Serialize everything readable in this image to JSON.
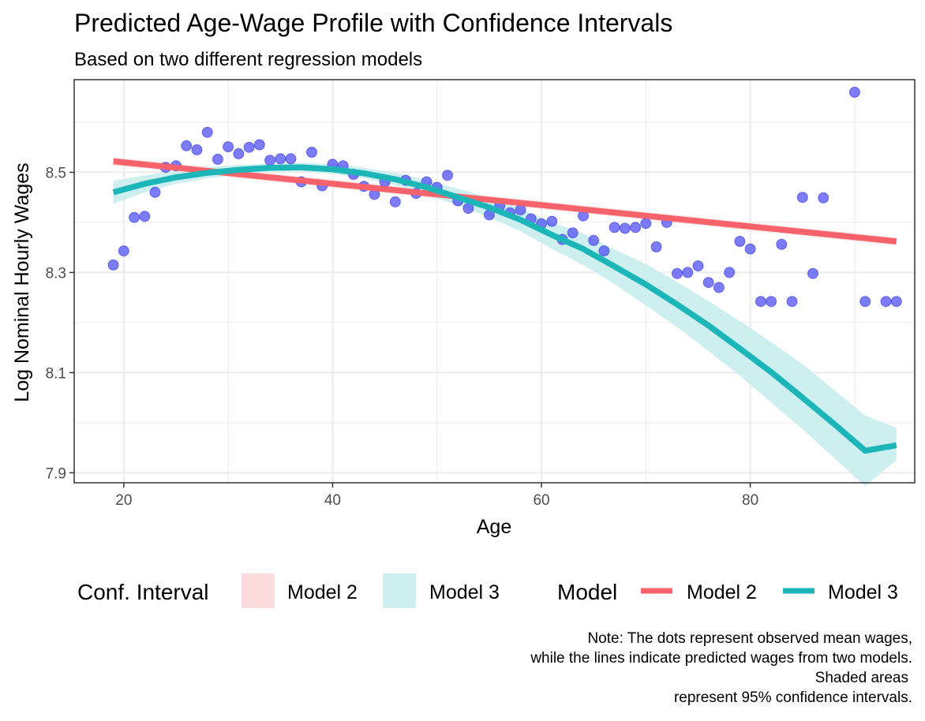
{
  "chart_data": {
    "type": "scatter",
    "title": "Predicted Age-Wage Profile with Confidence Intervals",
    "subtitle": "Based on two different regression models",
    "xlabel": "Age",
    "ylabel": "Log Nominal Hourly Wages",
    "xlim": [
      15.25,
      95.75
    ],
    "ylim": [
      7.88,
      8.685
    ],
    "x_ticks": [
      20,
      40,
      60,
      80
    ],
    "y_ticks": [
      7.9,
      8.1,
      8.3,
      8.5
    ],
    "x_tick_labels": [
      "20",
      "40",
      "60",
      "80"
    ],
    "y_tick_labels": [
      "7.9",
      "8.1",
      "8.3",
      "8.5"
    ],
    "grid": true,
    "legend_position": "bottom",
    "colors": {
      "points": "#4a4af5",
      "model2_line": "#f8636b",
      "model3_line": "#1cb6b8",
      "model2_ci": "#fcdcdc",
      "model3_ci": "#cdeff0",
      "grid": "#ebebeb",
      "panel_border": "#333333"
    },
    "observed_points": {
      "x": [
        19,
        20,
        21,
        22,
        23,
        24,
        25,
        26,
        27,
        28,
        29,
        30,
        31,
        32,
        33,
        34,
        35,
        36,
        37,
        38,
        39,
        40,
        41,
        42,
        43,
        44,
        45,
        46,
        47,
        48,
        49,
        50,
        51,
        52,
        53,
        55,
        56,
        57,
        58,
        59,
        60,
        61,
        62,
        63,
        64,
        65,
        66,
        67,
        68,
        69,
        70,
        71,
        72,
        73,
        74,
        75,
        76,
        77,
        78,
        79,
        80,
        81,
        82,
        83,
        84,
        85,
        86,
        87,
        90,
        91,
        93,
        94
      ],
      "y": [
        8.315,
        8.343,
        8.41,
        8.412,
        8.46,
        8.51,
        8.513,
        8.553,
        8.545,
        8.58,
        8.526,
        8.551,
        8.537,
        8.55,
        8.555,
        8.524,
        8.527,
        8.527,
        8.481,
        8.54,
        8.473,
        8.516,
        8.513,
        8.496,
        8.472,
        8.456,
        8.481,
        8.441,
        8.484,
        8.458,
        8.481,
        8.47,
        8.494,
        8.443,
        8.428,
        8.415,
        8.433,
        8.419,
        8.425,
        8.407,
        8.397,
        8.402,
        8.366,
        8.379,
        8.413,
        8.364,
        8.343,
        8.39,
        8.388,
        8.39,
        8.398,
        8.351,
        8.4,
        8.298,
        8.3,
        8.313,
        8.28,
        8.27,
        8.3,
        8.362,
        8.347,
        8.242,
        8.242,
        8.356,
        8.242,
        8.45,
        8.298,
        8.449,
        8.66,
        8.242,
        8.242,
        8.242
      ]
    },
    "series": [
      {
        "name": "Model 2",
        "x": [
          19,
          94
        ],
        "y": [
          8.522,
          8.362
        ],
        "ci_lower": [
          8.514,
          8.354
        ],
        "ci_upper": [
          8.53,
          8.37
        ]
      },
      {
        "name": "Model 3",
        "x": [
          19,
          22,
          25,
          28,
          31,
          34,
          37,
          40,
          43,
          46,
          49,
          52,
          55,
          58,
          61,
          64,
          67,
          70,
          73,
          76,
          79,
          82,
          85,
          88,
          91,
          94
        ],
        "y": [
          8.46,
          8.477,
          8.49,
          8.499,
          8.505,
          8.509,
          8.51,
          8.506,
          8.498,
          8.486,
          8.47,
          8.45,
          8.43,
          8.405,
          8.375,
          8.347,
          8.312,
          8.276,
          8.236,
          8.194,
          8.148,
          8.101,
          8.05,
          7.998,
          7.944,
          7.955
        ],
        "ci_lower": [
          8.437,
          8.46,
          8.477,
          8.488,
          8.496,
          8.502,
          8.502,
          8.497,
          8.488,
          8.474,
          8.455,
          8.434,
          8.41,
          8.382,
          8.347,
          8.315,
          8.277,
          8.234,
          8.191,
          8.143,
          8.094,
          8.04,
          7.987,
          7.93,
          7.873,
          7.925
        ],
        "ci_upper": [
          8.483,
          8.494,
          8.503,
          8.51,
          8.515,
          8.517,
          8.519,
          8.516,
          8.509,
          8.499,
          8.485,
          8.467,
          8.45,
          8.428,
          8.4,
          8.378,
          8.346,
          8.317,
          8.281,
          8.243,
          8.203,
          8.161,
          8.117,
          8.066,
          8.014,
          7.99
        ]
      }
    ],
    "legend": {
      "ci_title": "Conf. Interval",
      "ci_items": [
        "Model 2",
        "Model 3"
      ],
      "line_title": "Model",
      "line_items": [
        "Model 2",
        "Model 3"
      ]
    },
    "caption": [
      "Note: The dots represent observed mean wages,",
      "while the lines indicate predicted wages from two models.",
      "Shaded areas",
      "represent 95% confidence intervals."
    ]
  }
}
